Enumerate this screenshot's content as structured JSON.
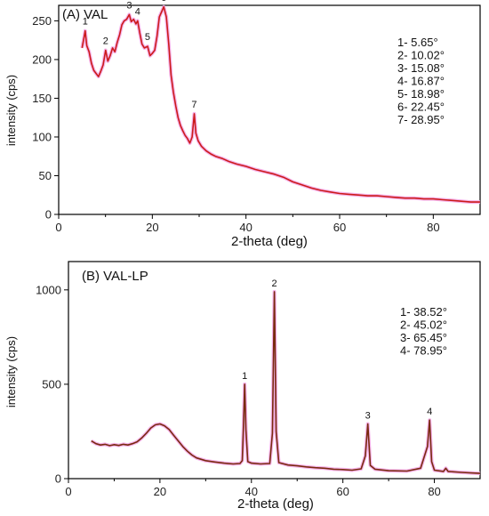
{
  "chart_data": [
    {
      "type": "line",
      "title": "(A) VAL",
      "xlabel": "2-theta (deg)",
      "ylabel": "intensity (cps)",
      "xlim": [
        0,
        90
      ],
      "ylim": [
        0,
        270
      ],
      "xticks": [
        0,
        20,
        40,
        60,
        80
      ],
      "yticks": [
        0,
        50,
        100,
        150,
        200,
        250
      ],
      "grid": false,
      "colors": {
        "line": "#cc1b1b",
        "glow": "#f3a6e6"
      },
      "series": [
        {
          "x": [
            5.0,
            5.4,
            5.65,
            6.0,
            6.5,
            7.0,
            7.5,
            8.0,
            8.5,
            9.0,
            9.5,
            10.02,
            10.5,
            11.0,
            11.5,
            12.0,
            12.5,
            13.0,
            13.5,
            14.0,
            14.5,
            15.08,
            15.5,
            16.0,
            16.5,
            16.87,
            17.3,
            17.8,
            18.3,
            18.98,
            19.5,
            20.0,
            20.5,
            21.0,
            21.5,
            22.0,
            22.45,
            23.0,
            23.5,
            24.0,
            24.5,
            25.0,
            25.5,
            26.0,
            26.5,
            27.0,
            27.5,
            28.0,
            28.5,
            28.95,
            29.3,
            29.8,
            30.5,
            31.5,
            32.5,
            33.5,
            35.0,
            36.5,
            38.0,
            40.0,
            42.0,
            44.0,
            46.0,
            48.0,
            50.0,
            52.0,
            54.0,
            56.0,
            58.0,
            60.0,
            62.0,
            64.0,
            66.0,
            68.0,
            70.0,
            72.0,
            74.0,
            76.0,
            78.0,
            80.0,
            82.0,
            84.0,
            86.0,
            88.0,
            90.0
          ],
          "y": [
            215,
            228,
            237,
            218,
            210,
            195,
            186,
            182,
            178,
            185,
            193,
            212,
            198,
            205,
            215,
            210,
            222,
            232,
            245,
            250,
            252,
            258,
            249,
            252,
            246,
            250,
            235,
            220,
            215,
            217,
            205,
            208,
            212,
            230,
            255,
            262,
            268,
            255,
            220,
            180,
            158,
            140,
            125,
            115,
            108,
            102,
            98,
            92,
            100,
            130,
            105,
            95,
            88,
            82,
            78,
            75,
            72,
            68,
            65,
            62,
            58,
            55,
            52,
            48,
            42,
            38,
            34,
            31,
            29,
            27,
            26,
            25,
            24,
            24,
            23,
            22,
            21,
            21,
            20,
            20,
            19,
            18,
            17,
            16,
            16
          ]
        }
      ],
      "peaks": [
        {
          "label": "1",
          "x": 5.65,
          "y": 237
        },
        {
          "label": "2",
          "x": 10.02,
          "y": 212
        },
        {
          "label": "3",
          "x": 15.08,
          "y": 258
        },
        {
          "label": "4",
          "x": 16.87,
          "y": 250
        },
        {
          "label": "5",
          "x": 18.98,
          "y": 217
        },
        {
          "label": "6",
          "x": 22.45,
          "y": 268
        },
        {
          "label": "7",
          "x": 28.95,
          "y": 130
        }
      ],
      "annotations": [
        "1- 5.65°",
        "2- 10.02°",
        "3- 15.08°",
        "4- 16.87°",
        "5- 18.98°",
        "6- 22.45°",
        "7- 28.95°"
      ]
    },
    {
      "type": "line",
      "title": "(B) VAL-LP",
      "xlabel": "2-theta (deg)",
      "ylabel": "intensity (cps)",
      "xlim": [
        0,
        90
      ],
      "ylim": [
        0,
        1150
      ],
      "xticks": [
        0,
        20,
        40,
        60,
        80
      ],
      "yticks": [
        0,
        500,
        1000
      ],
      "grid": false,
      "colors": {
        "line": "#7a2a10",
        "glow": "#f3a6e6"
      },
      "series": [
        {
          "x": [
            5.0,
            6.0,
            7.0,
            8.0,
            9.0,
            10.0,
            11.0,
            12.0,
            13.0,
            14.0,
            15.0,
            16.0,
            17.0,
            18.0,
            19.0,
            20.0,
            21.0,
            22.0,
            23.0,
            24.0,
            25.0,
            26.0,
            27.0,
            28.0,
            30.0,
            32.0,
            34.0,
            36.0,
            37.5,
            38.0,
            38.3,
            38.52,
            38.8,
            39.2,
            40.0,
            42.0,
            44.0,
            44.6,
            45.02,
            45.4,
            46.0,
            48.0,
            50.0,
            52.0,
            54.0,
            56.0,
            58.0,
            60.0,
            62.0,
            64.0,
            64.9,
            65.45,
            66.0,
            67.0,
            70.0,
            74.0,
            77.0,
            78.5,
            78.95,
            79.4,
            80.0,
            82.0,
            82.5,
            83.0,
            86.0,
            88.0,
            90.0
          ],
          "y": [
            200,
            185,
            178,
            182,
            175,
            180,
            176,
            182,
            178,
            185,
            195,
            215,
            240,
            268,
            285,
            290,
            280,
            260,
            230,
            200,
            170,
            145,
            125,
            110,
            95,
            88,
            82,
            78,
            80,
            95,
            300,
            500,
            260,
            90,
            82,
            78,
            80,
            240,
            990,
            250,
            85,
            72,
            68,
            62,
            58,
            55,
            50,
            48,
            45,
            52,
            120,
            290,
            70,
            50,
            42,
            40,
            55,
            170,
            310,
            90,
            45,
            38,
            55,
            38,
            33,
            30,
            28
          ]
        }
      ],
      "peaks": [
        {
          "label": "1",
          "x": 38.52,
          "y": 500
        },
        {
          "label": "2",
          "x": 45.02,
          "y": 990
        },
        {
          "label": "3",
          "x": 65.45,
          "y": 290
        },
        {
          "label": "4",
          "x": 78.95,
          "y": 310
        }
      ],
      "annotations": [
        "1- 38.52°",
        "2- 45.02°",
        "3- 65.45°",
        "4- 78.95°"
      ]
    }
  ]
}
